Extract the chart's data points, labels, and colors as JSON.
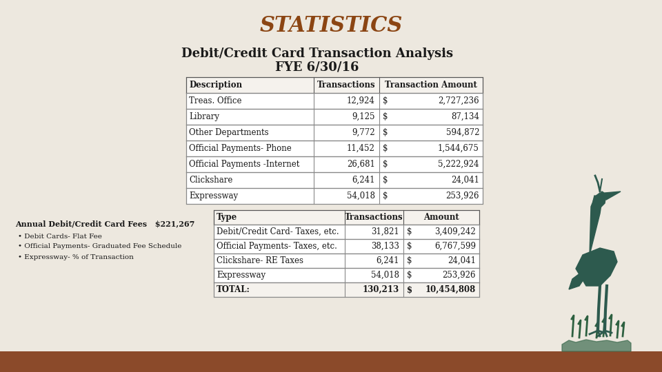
{
  "title": "STATISTICS",
  "subtitle1": "Debit/Credit Card Transaction Analysis",
  "subtitle2": "FYE 6/30/16",
  "title_color": "#8B4513",
  "subtitle_color": "#1a1a1a",
  "bg_color": "#ede8df",
  "table1_headers": [
    "Description",
    "Transactions",
    "Transaction Amount"
  ],
  "table1_rows": [
    [
      "Treas. Office",
      "12,924",
      "$",
      "2,727,236"
    ],
    [
      "Library",
      "9,125",
      "$",
      "87,134"
    ],
    [
      "Other Departments",
      "9,772",
      "$",
      "594,872"
    ],
    [
      "Official Payments- Phone",
      "11,452",
      "$",
      "1,544,675"
    ],
    [
      "Official Payments -Internet",
      "26,681",
      "$",
      "5,222,924"
    ],
    [
      "Clickshare",
      "6,241",
      "$",
      "24,041"
    ],
    [
      "Expressway",
      "54,018",
      "$",
      "253,926"
    ]
  ],
  "table2_headers": [
    "Type",
    "Transactions  Amount"
  ],
  "table2_col_headers": [
    "Type",
    "Transactions",
    "Amount"
  ],
  "table2_rows": [
    [
      "Debit/Credit Card- Taxes, etc.",
      "31,821",
      "$",
      "3,409,242"
    ],
    [
      "Official Payments- Taxes, etc.",
      "38,133",
      "$",
      "6,767,599"
    ],
    [
      "Clickshare- RE Taxes",
      "6,241",
      "$",
      "24,041"
    ],
    [
      "Expressway",
      "54,018",
      "$",
      "253,926"
    ],
    [
      "TOTAL:",
      "130,213",
      "$",
      "10,454,808"
    ]
  ],
  "bottom_text_line1": "Annual Debit/Credit Card Fees   $221,267",
  "bottom_bullets": [
    "Debit Cards- Flat Fee",
    "Official Payments- Graduated Fee Schedule",
    "Expressway- % of Transaction"
  ],
  "bottom_bar_color": "#8B4A2A",
  "heron_color": "#2d5a4e"
}
